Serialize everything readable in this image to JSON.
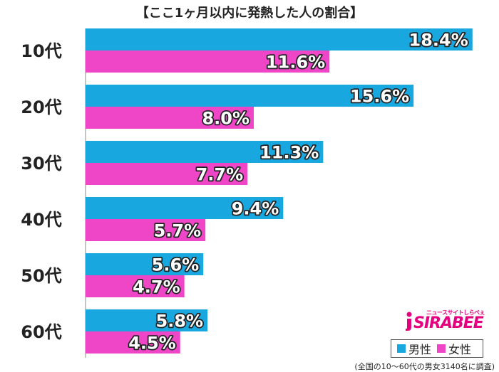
{
  "chart_data": {
    "type": "bar",
    "orientation": "horizontal",
    "title": "【ここ1ヶ月以内に発熱した人の割合】",
    "categories": [
      "10代",
      "20代",
      "30代",
      "40代",
      "50代",
      "60代"
    ],
    "series": [
      {
        "name": "男性",
        "values": [
          18.4,
          15.6,
          11.3,
          9.4,
          5.6,
          5.8
        ],
        "labels": [
          "18.4%",
          "15.6%",
          "11.3%",
          "9.4%",
          "5.6%",
          "5.8%"
        ],
        "color": "#19a7df"
      },
      {
        "name": "女性",
        "values": [
          11.6,
          8.0,
          7.7,
          5.7,
          4.7,
          4.5
        ],
        "labels": [
          "11.6%",
          "8.0%",
          "7.7%",
          "5.7%",
          "4.7%",
          "4.5%"
        ],
        "color": "#ee46c7"
      }
    ],
    "xlim": [
      0,
      20
    ],
    "grid": false,
    "legend": "bottom-right"
  },
  "logo": {
    "small_text": "ニュースサイトしらべぇ",
    "main_text": "SIRABEE",
    "color": "#e4007f"
  },
  "footnote": "(全国の10〜60代の男女3140名に調査)"
}
